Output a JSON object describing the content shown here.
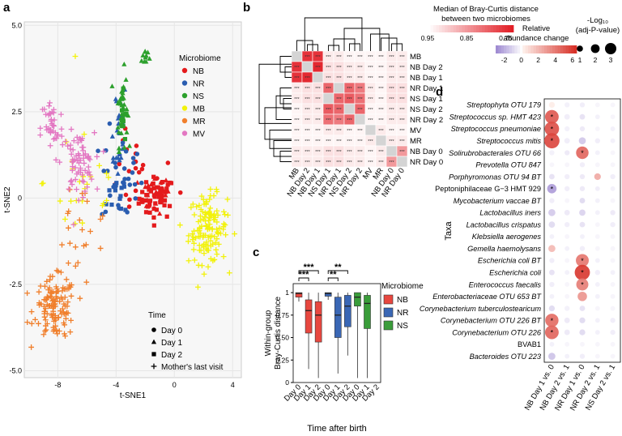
{
  "panel_labels": {
    "a": "a",
    "b": "b",
    "c": "c",
    "d": "d"
  },
  "chart_data": [
    {
      "panel": "a",
      "type": "scatter",
      "xlabel": "t-SNE1",
      "ylabel": "t-SNE2",
      "xlim": [
        -10.3,
        4.6
      ],
      "ylim": [
        -5.2,
        5.1
      ],
      "xticks": [
        {
          "v": -8,
          "label": "-8"
        },
        {
          "v": -4,
          "label": "-4"
        },
        {
          "v": 0,
          "label": "0"
        },
        {
          "v": 4,
          "label": "4"
        }
      ],
      "yticks": [
        {
          "v": 5,
          "label": "5.0"
        },
        {
          "v": 2.5,
          "label": "2.5"
        },
        {
          "v": 0,
          "label": "0"
        },
        {
          "v": -2.5,
          "label": "-2.5"
        },
        {
          "v": -5,
          "label": "-5.0"
        }
      ],
      "legend_title": "Microbiome",
      "groups": [
        {
          "name": "NB",
          "color": "#e41a1c"
        },
        {
          "name": "NR",
          "color": "#2a5db0"
        },
        {
          "name": "NS",
          "color": "#2ca02c"
        },
        {
          "name": "MB",
          "color": "#f2f20a"
        },
        {
          "name": "MR",
          "color": "#f07f2c"
        },
        {
          "name": "MV",
          "color": "#e377c2"
        }
      ],
      "time_legend_title": "Time",
      "times": [
        {
          "name": "Day 0",
          "shape": "circle"
        },
        {
          "name": "Day 1",
          "shape": "triangle"
        },
        {
          "name": "Day 2",
          "shape": "square"
        },
        {
          "name": "Mother's last visit",
          "shape": "plus"
        }
      ],
      "clusters": [
        {
          "group": "NB",
          "shape": "square",
          "cx": -1.2,
          "cy": 0.0,
          "sx": 1.1,
          "sy": 0.55,
          "n": 45
        },
        {
          "group": "NB",
          "shape": "triangle",
          "cx": -1.4,
          "cy": 0.1,
          "sx": 1.0,
          "sy": 0.5,
          "n": 25
        },
        {
          "group": "NB",
          "shape": "circle",
          "cx": -2.5,
          "cy": 0.5,
          "sx": 2.5,
          "sy": 1.1,
          "n": 25
        },
        {
          "group": "NR",
          "shape": "circle",
          "cx": -3.6,
          "cy": 0.6,
          "sx": 1.3,
          "sy": 1.3,
          "n": 30
        },
        {
          "group": "NR",
          "shape": "triangle",
          "cx": -3.9,
          "cy": 2.0,
          "sx": 0.6,
          "sy": 1.4,
          "n": 25
        },
        {
          "group": "NR",
          "shape": "square",
          "cx": -3.6,
          "cy": 0.1,
          "sx": 0.9,
          "sy": 0.6,
          "n": 12
        },
        {
          "group": "NS",
          "shape": "triangle",
          "cx": -3.6,
          "cy": 2.6,
          "sx": 0.35,
          "sy": 1.0,
          "n": 35
        },
        {
          "group": "NS",
          "shape": "square",
          "cx": -3.5,
          "cy": 2.3,
          "sx": 0.3,
          "sy": 0.7,
          "n": 10
        },
        {
          "group": "NS",
          "shape": "triangle",
          "cx": -2.0,
          "cy": 4.1,
          "sx": 0.3,
          "sy": 0.3,
          "n": 10
        },
        {
          "group": "MB",
          "shape": "plus",
          "cx": 2.3,
          "cy": -0.9,
          "sx": 1.2,
          "sy": 0.9,
          "n": 130
        },
        {
          "group": "MB",
          "shape": "plus",
          "cx": -6.2,
          "cy": 0.5,
          "sx": 2.5,
          "sy": 2.0,
          "n": 25
        },
        {
          "group": "MR",
          "shape": "plus",
          "cx": -8.2,
          "cy": -3.2,
          "sx": 1.3,
          "sy": 0.8,
          "n": 120
        },
        {
          "group": "MR",
          "shape": "plus",
          "cx": -6.5,
          "cy": -1.0,
          "sx": 2.0,
          "sy": 1.5,
          "n": 25
        },
        {
          "group": "MV",
          "shape": "plus",
          "cx": -6.6,
          "cy": 1.0,
          "sx": 1.0,
          "sy": 0.8,
          "n": 70
        },
        {
          "group": "MV",
          "shape": "plus",
          "cx": -8.4,
          "cy": 2.0,
          "sx": 0.7,
          "sy": 0.9,
          "n": 40
        }
      ]
    },
    {
      "panel": "b",
      "type": "heatmap",
      "legend_title": "Median of Bray-Curtis distance\nbetween two microbiomes",
      "legend_ticks": [
        {
          "v": 0.95,
          "label": "0.95"
        },
        {
          "v": 0.85,
          "label": "0.85"
        },
        {
          "v": 0.75,
          "label": "0.75"
        }
      ],
      "range": [
        0.95,
        0.73
      ],
      "row_labels": [
        "MB",
        "NB Day 2",
        "NB Day 1",
        "NR Day 1",
        "NS Day 1",
        "NS Day 2",
        "NR Day 2",
        "MV",
        "MR",
        "NB Day 0",
        "NR Day 0"
      ],
      "col_labels": [
        "MB",
        "NB Day 2",
        "NB Day 1",
        "NS Day 1",
        "NR Day 1",
        "NS Day 2",
        "NR Day 2",
        "MV",
        "MR",
        "NB Day 0",
        "NR Day 0"
      ],
      "sig_label": "***",
      "values": [
        [
          null,
          0.75,
          0.75,
          0.93,
          0.93,
          0.94,
          0.94,
          0.94,
          0.94,
          0.93,
          0.93
        ],
        [
          0.75,
          null,
          0.74,
          0.92,
          0.92,
          0.93,
          0.93,
          0.94,
          0.94,
          0.93,
          0.93
        ],
        [
          0.75,
          0.74,
          null,
          0.92,
          0.92,
          0.93,
          0.93,
          0.94,
          0.94,
          0.93,
          0.93
        ],
        [
          0.93,
          0.92,
          0.92,
          0.8,
          null,
          0.8,
          0.82,
          0.93,
          0.94,
          0.92,
          0.92
        ],
        [
          0.93,
          0.92,
          0.92,
          null,
          0.8,
          0.79,
          0.81,
          0.93,
          0.94,
          0.92,
          0.92
        ],
        [
          0.94,
          0.93,
          0.93,
          0.79,
          0.8,
          null,
          0.8,
          0.94,
          0.94,
          0.93,
          0.93
        ],
        [
          0.94,
          0.93,
          0.93,
          0.81,
          0.82,
          0.8,
          null,
          0.94,
          0.94,
          0.93,
          0.93
        ],
        [
          0.94,
          0.94,
          0.94,
          0.93,
          0.93,
          0.94,
          0.94,
          null,
          0.93,
          0.94,
          0.94
        ],
        [
          0.94,
          0.94,
          0.94,
          0.94,
          0.94,
          0.94,
          0.94,
          0.93,
          null,
          0.93,
          0.93
        ],
        [
          0.93,
          0.93,
          0.93,
          0.92,
          0.92,
          0.93,
          0.93,
          0.94,
          0.93,
          null,
          0.85
        ],
        [
          0.93,
          0.93,
          0.93,
          0.92,
          0.92,
          0.93,
          0.93,
          0.94,
          0.93,
          0.85,
          null
        ]
      ]
    },
    {
      "panel": "c",
      "type": "box",
      "ylabel": "Within-group\nBray-Curtis distance",
      "xlabel": "Time after birth",
      "ylim": [
        0,
        1.1
      ],
      "yticks": [
        {
          "v": 1,
          "label": "1"
        },
        {
          "v": 0.75,
          "label": "0.75"
        },
        {
          "v": 0.5,
          "label": "0.50"
        },
        {
          "v": 0.25,
          "label": "0.25"
        },
        {
          "v": 0,
          "label": "0"
        }
      ],
      "categories": [
        "Day 0",
        "Day 1",
        "Day 2",
        "Day 0",
        "Day 1",
        "Day 2",
        "Day 0",
        "Day 1",
        "Day 2"
      ],
      "legend_title": "Microbiome",
      "series": [
        {
          "name": "NB",
          "color": "#e8473f",
          "boxes": [
            {
              "min": 0.9,
              "q1": 0.95,
              "med": 0.99,
              "q3": 1.0,
              "max": 1.0
            },
            {
              "min": 0.15,
              "q1": 0.55,
              "med": 0.8,
              "q3": 0.92,
              "max": 1.0
            },
            {
              "min": 0.05,
              "q1": 0.45,
              "med": 0.75,
              "q3": 0.9,
              "max": 1.0
            }
          ]
        },
        {
          "name": "NR",
          "color": "#3a67b5",
          "boxes": [
            {
              "min": 0.92,
              "q1": 0.96,
              "med": 0.99,
              "q3": 1.0,
              "max": 1.0
            },
            {
              "min": 0.1,
              "q1": 0.5,
              "med": 0.75,
              "q3": 0.95,
              "max": 1.0
            },
            {
              "min": 0.3,
              "q1": 0.62,
              "med": 0.85,
              "q3": 0.97,
              "max": 1.0
            }
          ]
        },
        {
          "name": "NS",
          "color": "#3a9d3a",
          "boxes": [
            {
              "min": 0.05,
              "q1": 0.85,
              "med": 0.95,
              "q3": 1.0,
              "max": 1.0
            },
            {
              "min": 0.05,
              "q1": 0.6,
              "med": 0.88,
              "q3": 0.97,
              "max": 1.0
            }
          ]
        }
      ],
      "significance": [
        {
          "from": 0,
          "to": 1,
          "label": "***",
          "level": 1
        },
        {
          "from": 0,
          "to": 2,
          "label": "***",
          "level": 2
        },
        {
          "from": 3,
          "to": 4,
          "label": "**",
          "level": 1
        },
        {
          "from": 3,
          "to": 5,
          "label": "**",
          "level": 2
        }
      ]
    },
    {
      "panel": "d",
      "type": "dotplot",
      "ylabel": "Taxa",
      "legend_title_color": "Relative\nabundance change",
      "legend_title_size": "-Log₁₀\n(adj-P-value)",
      "color_ticks": [
        {
          "v": -2,
          "label": "-2"
        },
        {
          "v": 0,
          "label": "0"
        },
        {
          "v": 2,
          "label": "2"
        },
        {
          "v": 4,
          "label": "4"
        },
        {
          "v": 6,
          "label": "6"
        }
      ],
      "color_range": [
        -3,
        6.5
      ],
      "size_ticks": [
        {
          "v": 1,
          "label": "1"
        },
        {
          "v": 2,
          "label": "2"
        },
        {
          "v": 3,
          "label": "3"
        }
      ],
      "comparisons": [
        "NB Day 1 vs. 0",
        "NB Day 2 vs. 1",
        "NR Day 1 vs. 0",
        "NR Day 2 vs. 1",
        "NS Day 2 vs. 1"
      ],
      "taxa": [
        "Streptophyta OTU 179",
        "Streptococcus sp. HMT 423",
        "Streptococcus pneumoniae",
        "Streptococcus mitis",
        "Solirubrobacterales OTU 66",
        "Prevotella OTU 847",
        "Porphyromonas OTU 94 BT",
        "Peptoniphilaceae G−3 HMT 929",
        "Mycobacterium vaccae BT",
        "Lactobacillus iners",
        "Lactobacillus crispatus",
        "Klebsiella aerogenes",
        "Gemella haemolysans",
        "Escherichia coli BT",
        "Escherichia coli",
        "Enterococcus faecalis",
        "Enterobacteriaceae OTU 653 BT",
        "Corynebacterium tuberculostearicum",
        "Corynebacterium OTU 226 BT",
        "Corynebacterium OTU 226",
        "BVAB1",
        "Bacteroides OTU 223"
      ],
      "italic": [
        true,
        true,
        true,
        true,
        true,
        true,
        true,
        false,
        true,
        true,
        true,
        true,
        true,
        true,
        true,
        true,
        true,
        true,
        true,
        true,
        false,
        true
      ],
      "sig_label": "*",
      "values": [
        [
          [
            0.3,
            0.6
          ],
          [
            -0.4,
            0.4
          ],
          [
            -0.5,
            0.4
          ],
          [
            -0.3,
            0.3
          ],
          [
            -0.3,
            0.3
          ]
        ],
        [
          [
            5.2,
            2.6,
            1
          ],
          [
            -0.5,
            0.5
          ],
          [
            -0.8,
            0.5
          ],
          [
            -0.4,
            0.3
          ],
          [
            -0.3,
            0.3
          ]
        ],
        [
          [
            5.5,
            2.8,
            1
          ],
          [
            -0.4,
            0.4
          ],
          [
            -0.6,
            0.4
          ],
          [
            -0.3,
            0.3
          ],
          [
            -0.4,
            0.3
          ]
        ],
        [
          [
            5.8,
            3.0,
            1
          ],
          [
            -0.5,
            0.5
          ],
          [
            -1.5,
            0.9
          ],
          [
            -0.5,
            0.4
          ],
          [
            -0.4,
            0.3
          ]
        ],
        [
          [
            -0.4,
            0.4
          ],
          [
            -0.6,
            0.4
          ],
          [
            4.8,
            2.3,
            1
          ],
          [
            -0.4,
            0.3
          ],
          [
            -0.3,
            0.3
          ]
        ],
        [
          [
            -0.3,
            0.3
          ],
          [
            -0.3,
            0.3
          ],
          [
            -0.5,
            0.4
          ],
          [
            -0.3,
            0.3
          ],
          [
            -0.3,
            0.3
          ]
        ],
        [
          [
            -0.8,
            0.5
          ],
          [
            -0.5,
            0.4
          ],
          [
            -0.6,
            0.4
          ],
          [
            2.5,
            0.8
          ],
          [
            -0.5,
            0.4
          ]
        ],
        [
          [
            -2.6,
            1.5,
            1
          ],
          [
            -0.5,
            0.4
          ],
          [
            -0.6,
            0.4
          ],
          [
            -0.5,
            0.3
          ],
          [
            -0.4,
            0.3
          ]
        ],
        [
          [
            -0.5,
            0.4
          ],
          [
            -0.3,
            0.3
          ],
          [
            -1.0,
            0.5
          ],
          [
            -0.4,
            0.3
          ],
          [
            -0.3,
            0.3
          ]
        ],
        [
          [
            -1.4,
            0.9
          ],
          [
            -0.6,
            0.5
          ],
          [
            -1.2,
            0.7
          ],
          [
            -0.4,
            0.3
          ],
          [
            -0.6,
            0.4
          ]
        ],
        [
          [
            -1.0,
            0.7
          ],
          [
            -0.5,
            0.4
          ],
          [
            -0.8,
            0.5
          ],
          [
            -0.3,
            0.3
          ],
          [
            -0.5,
            0.4
          ]
        ],
        [
          [
            -0.4,
            0.3
          ],
          [
            -0.3,
            0.3
          ],
          [
            -0.4,
            0.3
          ],
          [
            -0.3,
            0.3
          ],
          [
            -0.3,
            0.3
          ]
        ],
        [
          [
            2.0,
            0.9
          ],
          [
            -0.4,
            0.3
          ],
          [
            -0.5,
            0.4
          ],
          [
            -0.3,
            0.3
          ],
          [
            -0.3,
            0.3
          ]
        ],
        [
          [
            -0.5,
            0.4
          ],
          [
            -0.3,
            0.3
          ],
          [
            4.2,
            2.4,
            1
          ],
          [
            -0.4,
            0.3
          ],
          [
            -0.3,
            0.3
          ]
        ],
        [
          [
            -0.8,
            0.5
          ],
          [
            -0.4,
            0.3
          ],
          [
            6.3,
            3.0,
            1
          ],
          [
            -0.5,
            0.4
          ],
          [
            -0.4,
            0.3
          ]
        ],
        [
          [
            -0.5,
            0.4
          ],
          [
            -0.3,
            0.3
          ],
          [
            4.0,
            2.2,
            1
          ],
          [
            -0.4,
            0.3
          ],
          [
            -0.3,
            0.3
          ]
        ],
        [
          [
            -0.4,
            0.3
          ],
          [
            -0.3,
            0.3
          ],
          [
            3.2,
            1.5
          ],
          [
            -0.4,
            0.3
          ],
          [
            -0.3,
            0.3
          ]
        ],
        [
          [
            -1.0,
            0.6
          ],
          [
            -0.4,
            0.4
          ],
          [
            -0.8,
            0.5
          ],
          [
            -0.3,
            0.3
          ],
          [
            -0.3,
            0.3
          ]
        ],
        [
          [
            4.6,
            2.5,
            1
          ],
          [
            -0.6,
            0.5
          ],
          [
            -1.0,
            0.6
          ],
          [
            -0.4,
            0.3
          ],
          [
            -0.5,
            0.4
          ]
        ],
        [
          [
            4.8,
            2.6,
            1
          ],
          [
            -0.6,
            0.5
          ],
          [
            -1.0,
            0.6
          ],
          [
            -0.4,
            0.3
          ],
          [
            -0.5,
            0.4
          ]
        ],
        [
          [
            -0.4,
            0.3
          ],
          [
            -0.3,
            0.3
          ],
          [
            -0.3,
            0.3
          ],
          [
            -0.3,
            0.3
          ],
          [
            -0.3,
            0.3
          ]
        ],
        [
          [
            -1.6,
            0.9
          ],
          [
            -0.4,
            0.3
          ],
          [
            -0.5,
            0.4
          ],
          [
            -0.3,
            0.3
          ],
          [
            -0.3,
            0.3
          ]
        ]
      ]
    }
  ]
}
